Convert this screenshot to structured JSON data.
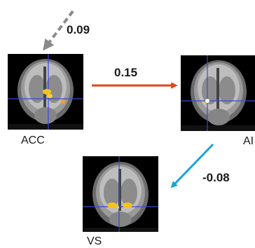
{
  "regions": [
    {
      "id": "acc",
      "label": "ACC"
    },
    {
      "id": "ai",
      "label": "AI"
    },
    {
      "id": "vs",
      "label": "VS"
    }
  ],
  "paths": [
    {
      "from": "input",
      "to": "ACC",
      "coefficient": "0.09",
      "style": "dashed",
      "color": "#8a8a8a"
    },
    {
      "from": "ACC",
      "to": "AI",
      "coefficient": "0.15",
      "style": "solid",
      "color": "#e0461c"
    },
    {
      "from": "AI",
      "to": "VS",
      "coefficient": "-0.08",
      "style": "solid",
      "color": "#1aa3d9"
    }
  ],
  "colors": {
    "activation": "#f7c21a",
    "crosshair": "#3d46d8",
    "background": "#ffffff"
  },
  "icons": {
    "input_arrow": "dashed-arrow-icon",
    "acc_to_ai_arrow": "right-arrow-icon",
    "ai_to_vs_arrow": "diagonal-arrow-icon"
  }
}
